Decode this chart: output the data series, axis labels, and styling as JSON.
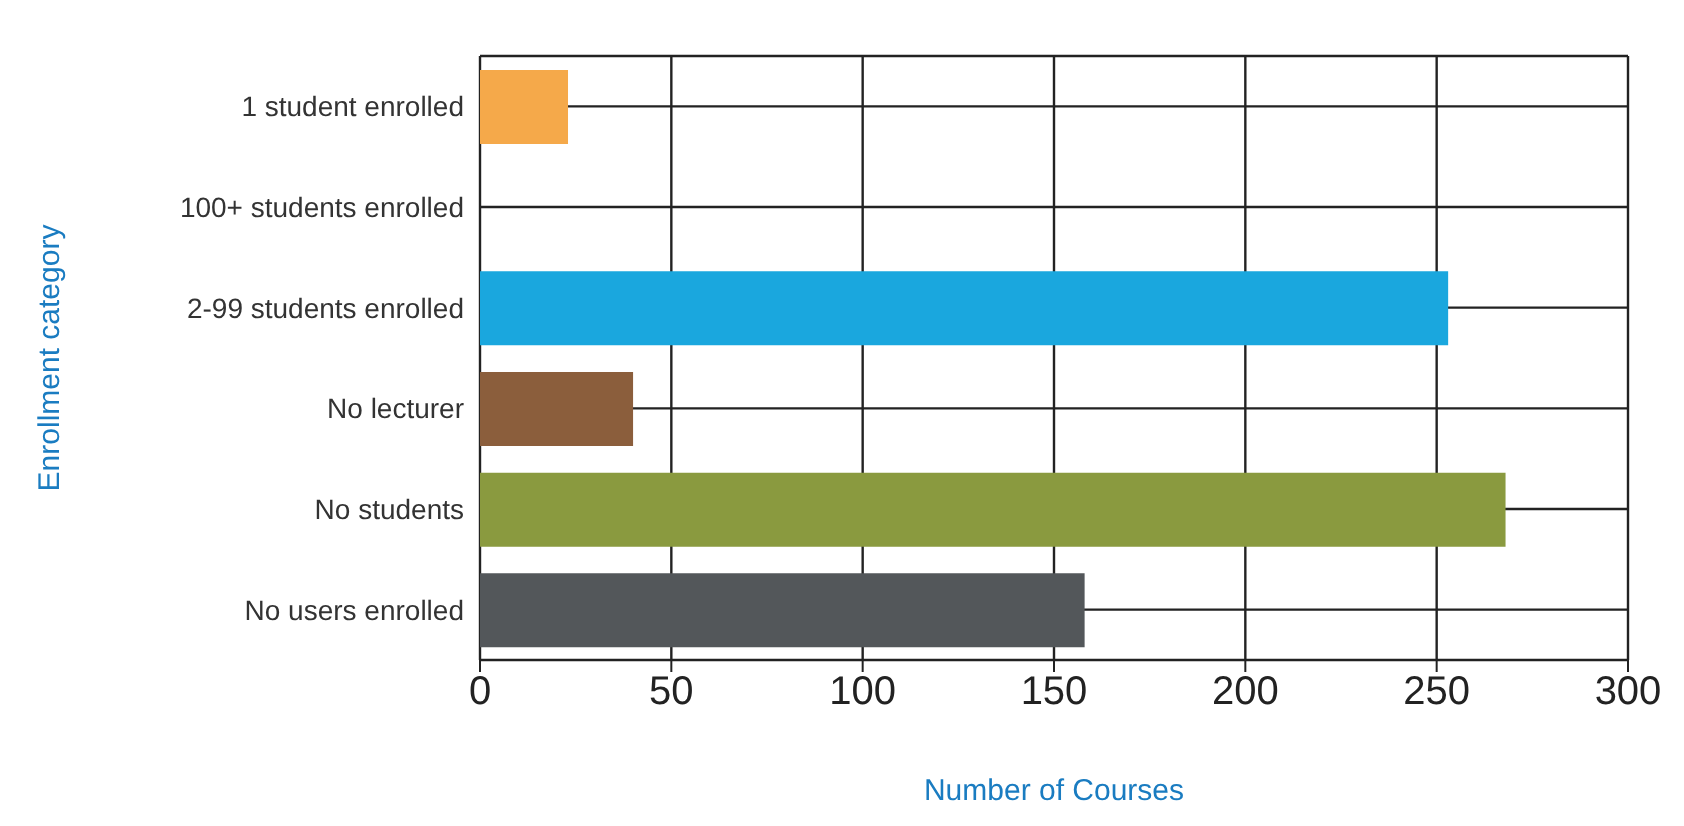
{
  "chart_data": {
    "type": "bar",
    "orientation": "horizontal",
    "xlabel": "Number of Courses",
    "ylabel": "Enrollment category",
    "categories": [
      "1 student enrolled",
      "100+ students enrolled",
      "2-99 students enrolled",
      "No lecturer",
      "No students",
      "No users enrolled"
    ],
    "values": [
      23,
      0,
      253,
      40,
      268,
      158
    ],
    "colors": [
      "#f5a94a",
      "#1aa7de",
      "#1aa7de",
      "#8b5e3c",
      "#8a9a3f",
      "#53575a"
    ],
    "xlim": [
      0,
      300
    ],
    "xticks": [
      0,
      50,
      100,
      150,
      200,
      250,
      300
    ],
    "grid": true
  }
}
